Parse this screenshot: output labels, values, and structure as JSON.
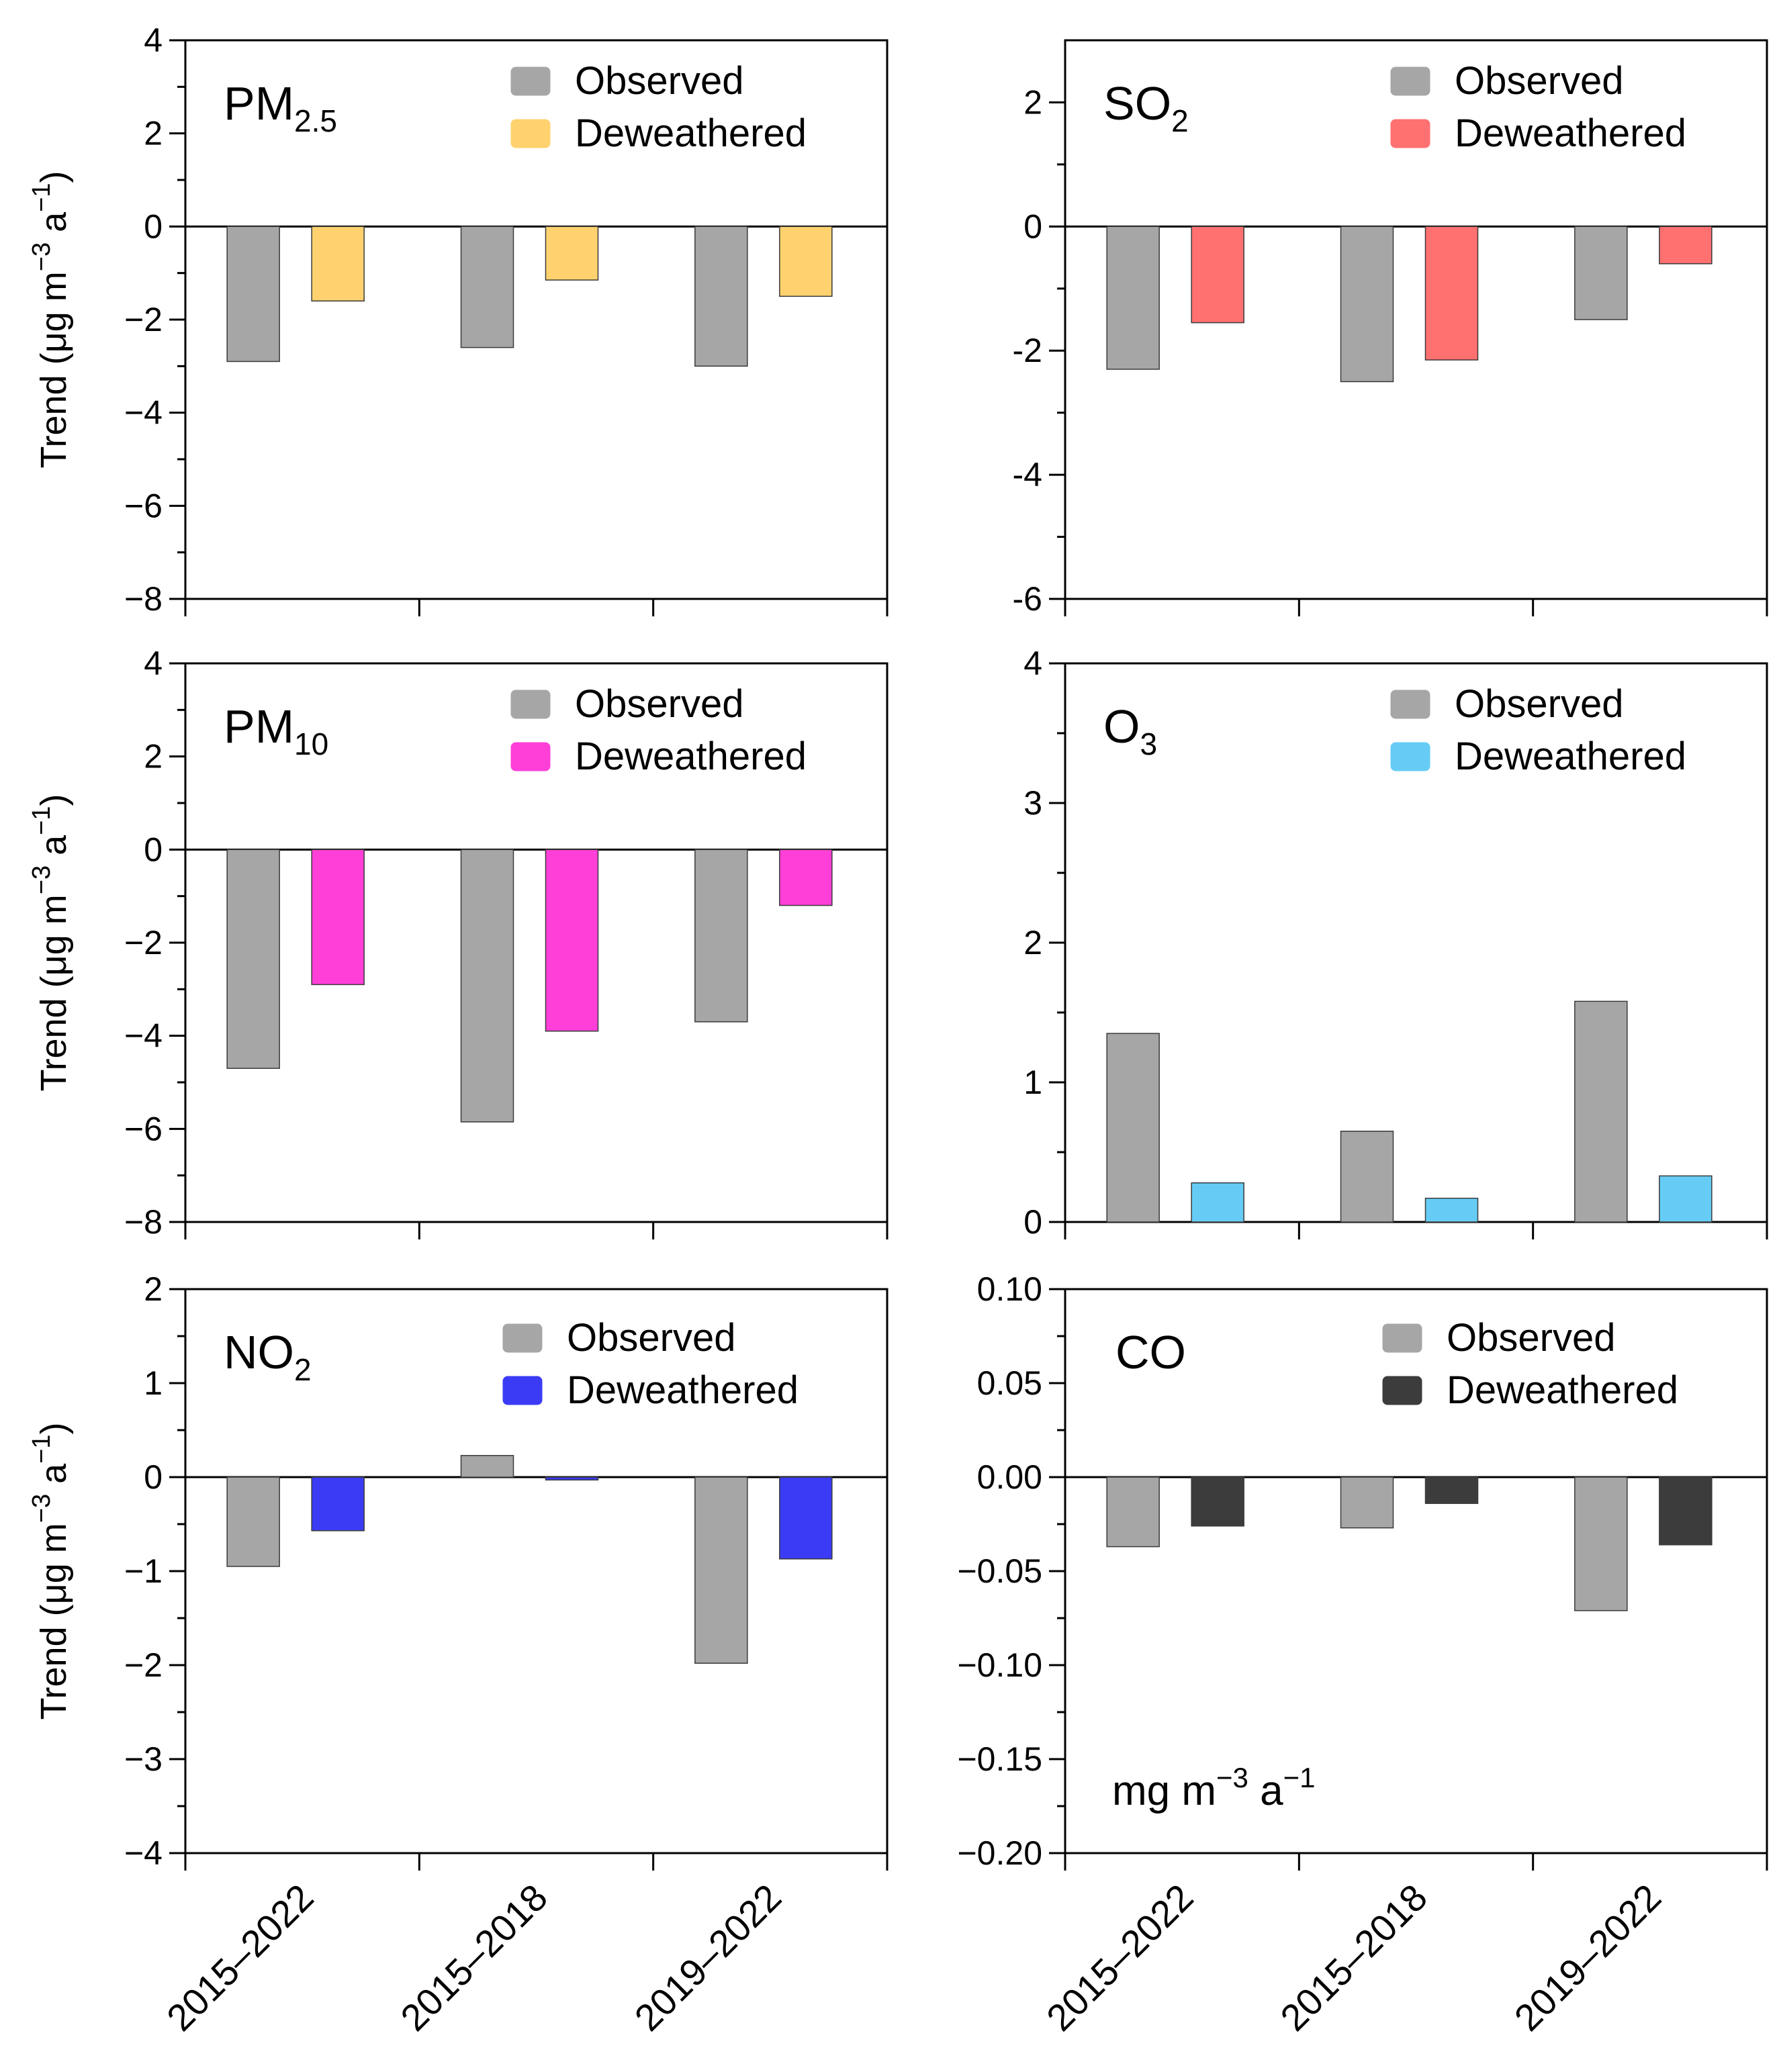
{
  "chart_data": [
    {
      "type": "bar",
      "title": "PM",
      "title_sub": "2.5",
      "ylabel": "Trend (μg m",
      "ylabel_sup1": "−3",
      "ylabel_mid": " a",
      "ylabel_sup2": "−1",
      "ylabel_end": ")",
      "categories": [
        "2015–2022",
        "2015–2018",
        "2019–2022"
      ],
      "ylim": [
        -8,
        4
      ],
      "yticks": [
        4,
        2,
        0,
        -2,
        -4,
        -6,
        -8
      ],
      "ytick_labels": [
        "4",
        "2",
        "0",
        "−2",
        "−4",
        "−6",
        "−8"
      ],
      "series": [
        {
          "name": "Observed",
          "color": "#a6a6a6",
          "values": [
            -2.9,
            -2.6,
            -3.0
          ]
        },
        {
          "name": "Deweathered",
          "color": "#ffd26f",
          "values": [
            -1.6,
            -1.15,
            -1.5
          ]
        }
      ]
    },
    {
      "type": "bar",
      "title": "SO",
      "title_sub": "2",
      "categories": [
        "2015–2022",
        "2015–2018",
        "2019–2022"
      ],
      "ylim": [
        -6,
        3
      ],
      "yticks": [
        2,
        0,
        -2,
        -4,
        -6
      ],
      "ytick_labels": [
        "2",
        "0",
        "-2",
        "-4",
        "-6"
      ],
      "series": [
        {
          "name": "Observed",
          "color": "#a6a6a6",
          "values": [
            -2.3,
            -2.5,
            -1.5
          ]
        },
        {
          "name": "Deweathered",
          "color": "#ff7070",
          "values": [
            -1.55,
            -2.15,
            -0.6
          ]
        }
      ]
    },
    {
      "type": "bar",
      "title": "PM",
      "title_sub": "10",
      "ylabel": "Trend (μg m",
      "ylabel_sup1": "−3",
      "ylabel_mid": " a",
      "ylabel_sup2": "−1",
      "ylabel_end": ")",
      "categories": [
        "2015–2022",
        "2015–2018",
        "2019–2022"
      ],
      "ylim": [
        -8,
        4
      ],
      "yticks": [
        4,
        2,
        0,
        -2,
        -4,
        -6,
        -8
      ],
      "ytick_labels": [
        "4",
        "2",
        "0",
        "−2",
        "−4",
        "−6",
        "−8"
      ],
      "series": [
        {
          "name": "Observed",
          "color": "#a6a6a6",
          "values": [
            -4.7,
            -5.85,
            -3.7
          ]
        },
        {
          "name": "Deweathered",
          "color": "#ff3fd8",
          "values": [
            -2.9,
            -3.9,
            -1.2
          ]
        }
      ]
    },
    {
      "type": "bar",
      "title": "O",
      "title_sub": "3",
      "categories": [
        "2015–2022",
        "2015–2018",
        "2019–2022"
      ],
      "ylim": [
        0,
        4
      ],
      "yticks": [
        4,
        3,
        2,
        1,
        0
      ],
      "ytick_labels": [
        "4",
        "3",
        "2",
        "1",
        "0"
      ],
      "series": [
        {
          "name": "Observed",
          "color": "#a6a6a6",
          "values": [
            1.35,
            0.65,
            1.58
          ]
        },
        {
          "name": "Deweathered",
          "color": "#66ccf5",
          "values": [
            0.28,
            0.17,
            0.33
          ]
        }
      ]
    },
    {
      "type": "bar",
      "title": "NO",
      "title_sub": "2",
      "ylabel": "Trend (μg m",
      "ylabel_sup1": "−3",
      "ylabel_mid": " a",
      "ylabel_sup2": "−1",
      "ylabel_end": ")",
      "categories": [
        "2015–2022",
        "2015–2018",
        "2019–2022"
      ],
      "ylim": [
        -4,
        2
      ],
      "yticks": [
        2,
        1,
        0,
        -1,
        -2,
        -3,
        -4
      ],
      "ytick_labels": [
        "2",
        "1",
        "0",
        "−1",
        "−2",
        "−3",
        "−4"
      ],
      "series": [
        {
          "name": "Observed",
          "color": "#a6a6a6",
          "values": [
            -0.95,
            0.23,
            -1.98
          ]
        },
        {
          "name": "Deweathered",
          "color": "#3b3bf5",
          "values": [
            -0.57,
            -0.03,
            -0.87
          ]
        }
      ]
    },
    {
      "type": "bar",
      "title": "CO",
      "title_sub": "",
      "unit_note": "mg m",
      "unit_sup1": "−3",
      "unit_mid": " a",
      "unit_sup2": "−1",
      "categories": [
        "2015–2022",
        "2015–2018",
        "2019–2022"
      ],
      "ylim": [
        -0.2,
        0.1
      ],
      "yticks": [
        0.1,
        0.05,
        0,
        -0.05,
        -0.1,
        -0.15,
        -0.2
      ],
      "ytick_labels": [
        "0.10",
        "0.05",
        "0.00",
        "−0.05",
        "−0.10",
        "−0.15",
        "−0.20"
      ],
      "series": [
        {
          "name": "Observed",
          "color": "#a6a6a6",
          "values": [
            -0.037,
            -0.027,
            -0.071
          ]
        },
        {
          "name": "Deweathered",
          "color": "#3c3c3c",
          "values": [
            -0.026,
            -0.014,
            -0.036
          ]
        }
      ]
    }
  ]
}
